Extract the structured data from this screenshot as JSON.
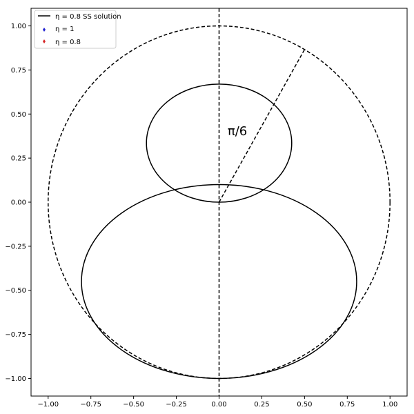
{
  "chart_data": {
    "type": "line",
    "title": "",
    "xlabel": "",
    "ylabel": "",
    "xlim": [
      -1.1,
      1.1
    ],
    "ylim": [
      -1.1,
      1.1
    ],
    "grid": false,
    "legend_position": "top-left",
    "xticks": [
      "−1.00",
      "−0.75",
      "−0.50",
      "−0.25",
      "0.00",
      "0.25",
      "0.50",
      "0.75",
      "1.00"
    ],
    "xtick_values": [
      -1.0,
      -0.75,
      -0.5,
      -0.25,
      0.0,
      0.25,
      0.5,
      0.75,
      1.0
    ],
    "yticks": [
      "1.00",
      "0.75",
      "0.50",
      "0.25",
      "0.00",
      "−0.25",
      "−0.50",
      "−0.75",
      "−1.00"
    ],
    "ytick_values": [
      1.0,
      0.75,
      0.5,
      0.25,
      0.0,
      -0.25,
      -0.5,
      -0.75,
      -1.0
    ],
    "series": [
      {
        "name": "η = 0.8 SS solution",
        "style": "solid",
        "color": "#000000",
        "upper_loop": {
          "center": [
            0.0,
            0.335
          ],
          "radius_x": 0.425,
          "radius_y": 0.335
        },
        "lower_loop": {
          "center": [
            0.0,
            -0.45
          ],
          "radius_x": 0.805,
          "radius_y": 0.55
        }
      },
      {
        "name": "η = 1",
        "style": "marker",
        "color": "#1f1fd0"
      },
      {
        "name": "η = 0.8",
        "style": "marker",
        "color": "#d62728"
      }
    ],
    "reference_lines": {
      "unit_circle": {
        "center": [
          0.0,
          0.0
        ],
        "radius": 1.0,
        "style": "dashed"
      },
      "vertical_axis_line": {
        "x": 0.0,
        "style": "dashed"
      },
      "angle_line": {
        "from": [
          0.0,
          0.0
        ],
        "to": [
          0.5,
          0.866
        ],
        "style": "dashed"
      }
    },
    "annotation": {
      "text": "π/6",
      "x": 0.05,
      "y": 0.38
    }
  }
}
